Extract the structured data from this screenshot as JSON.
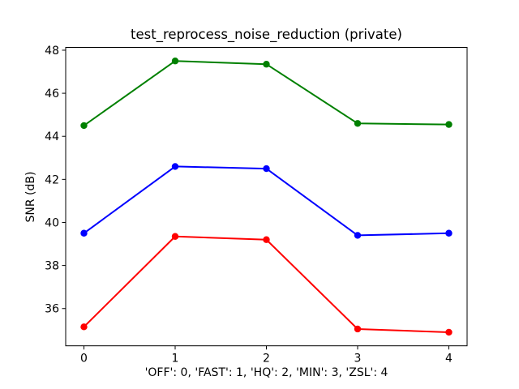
{
  "figure": {
    "background": "#ffffff",
    "axis_color": "#000000"
  },
  "chart_data": {
    "type": "line",
    "title": "test_reprocess_noise_reduction (private)",
    "xlabel": "'OFF': 0, 'FAST': 1, 'HQ': 2, 'MIN': 3, 'ZSL': 4",
    "ylabel": "SNR (dB)",
    "x": [
      0,
      1,
      2,
      3,
      4
    ],
    "series": [
      {
        "name": "green-series",
        "color": "#008000",
        "values": [
          44.5,
          47.5,
          47.35,
          44.6,
          44.55
        ]
      },
      {
        "name": "blue-series",
        "color": "#0000ff",
        "values": [
          39.5,
          42.6,
          42.5,
          39.4,
          39.5
        ]
      },
      {
        "name": "red-series",
        "color": "#ff0000",
        "values": [
          35.15,
          39.35,
          39.2,
          35.05,
          34.9
        ]
      }
    ],
    "xticks": [
      "0",
      "1",
      "2",
      "3",
      "4"
    ],
    "xtick_values": [
      0,
      1,
      2,
      3,
      4
    ],
    "yticks": [
      "36",
      "38",
      "40",
      "42",
      "44",
      "46",
      "48"
    ],
    "ytick_values": [
      36,
      38,
      40,
      42,
      44,
      46,
      48
    ],
    "xlim": [
      -0.2,
      4.2
    ],
    "ylim": [
      34.27,
      48.13
    ],
    "grid": false,
    "legend_position": "none",
    "marker": "circle"
  }
}
